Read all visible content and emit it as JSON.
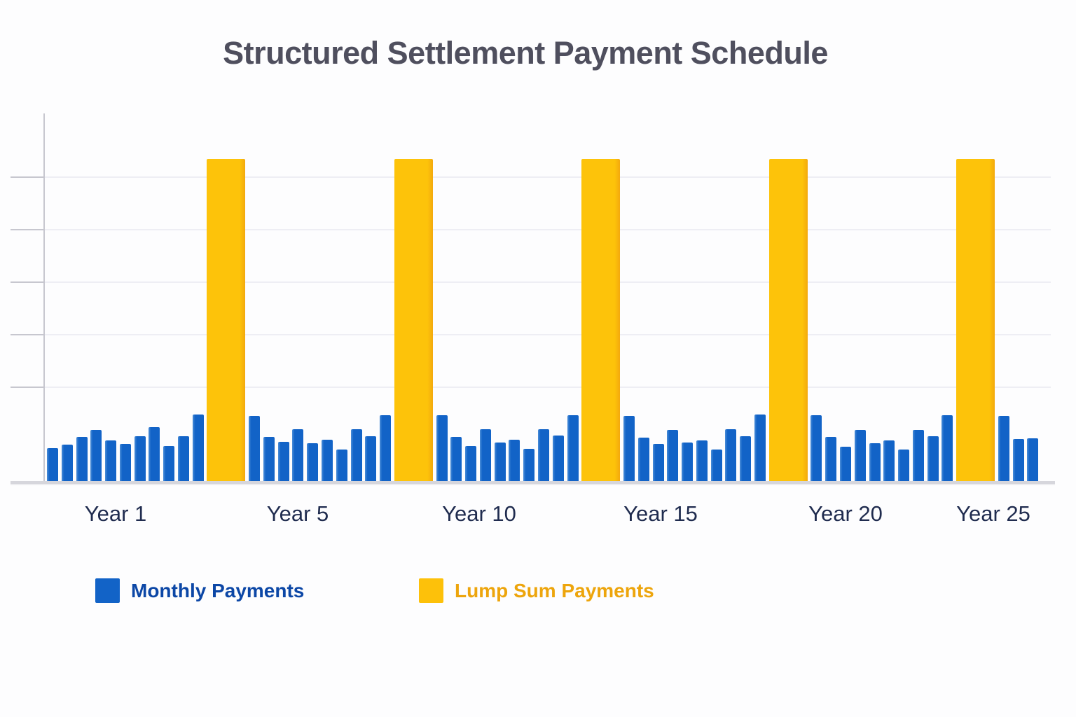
{
  "title": "Structured Settlement Payment Schedule",
  "legend": {
    "monthly_label": "Monthly Payments",
    "lump_label": "Lump Sum Payments",
    "monthly_color": "#1263c7",
    "lump_color": "#fdc10a"
  },
  "chart_data": {
    "type": "bar",
    "title": "Structured Settlement Payment Schedule",
    "xlabel": "",
    "ylabel": "",
    "categories": [
      "Year 1",
      "Year 5",
      "Year 10",
      "Year 15",
      "Year 20",
      "Year 25"
    ],
    "legend": [
      "Monthly Payments",
      "Lump Sum Payments"
    ],
    "legend_position": "bottom-left",
    "grid": "horizontal-faint",
    "y_axis_tick_labels_visible": false,
    "value_units": "relative (no y-axis value labels shown in chart)",
    "ylim": [
      0,
      530
    ],
    "lump_sum_value": 460,
    "groups": [
      {
        "label": "Year 1",
        "monthly": [
          47,
          52,
          63,
          73,
          58,
          53,
          64,
          77,
          50,
          64,
          95
        ],
        "lump": 460
      },
      {
        "label": "Year 5",
        "monthly": [
          93,
          63,
          56,
          74,
          54,
          59,
          45,
          74,
          64,
          94
        ],
        "lump": 460
      },
      {
        "label": "Year 10",
        "monthly": [
          94,
          63,
          50,
          74,
          55,
          59,
          46,
          74,
          65,
          94
        ],
        "lump": 460
      },
      {
        "label": "Year 15",
        "monthly": [
          93,
          62,
          53,
          73,
          55,
          58,
          45,
          74,
          64,
          95
        ],
        "lump": 460
      },
      {
        "label": "Year 20",
        "monthly": [
          94,
          63,
          49,
          73,
          54,
          58,
          45,
          73,
          64,
          94
        ],
        "lump": 460
      },
      {
        "label": "Year 25",
        "monthly": [
          93,
          60,
          61
        ],
        "lump": null
      }
    ],
    "series": [
      {
        "name": "Monthly Payments",
        "color": "#1263c7",
        "style": "many thin bars per year group"
      },
      {
        "name": "Lump Sum Payments",
        "color": "#fdc10a",
        "style": "one wide tall bar after each of the first five groups"
      }
    ]
  }
}
